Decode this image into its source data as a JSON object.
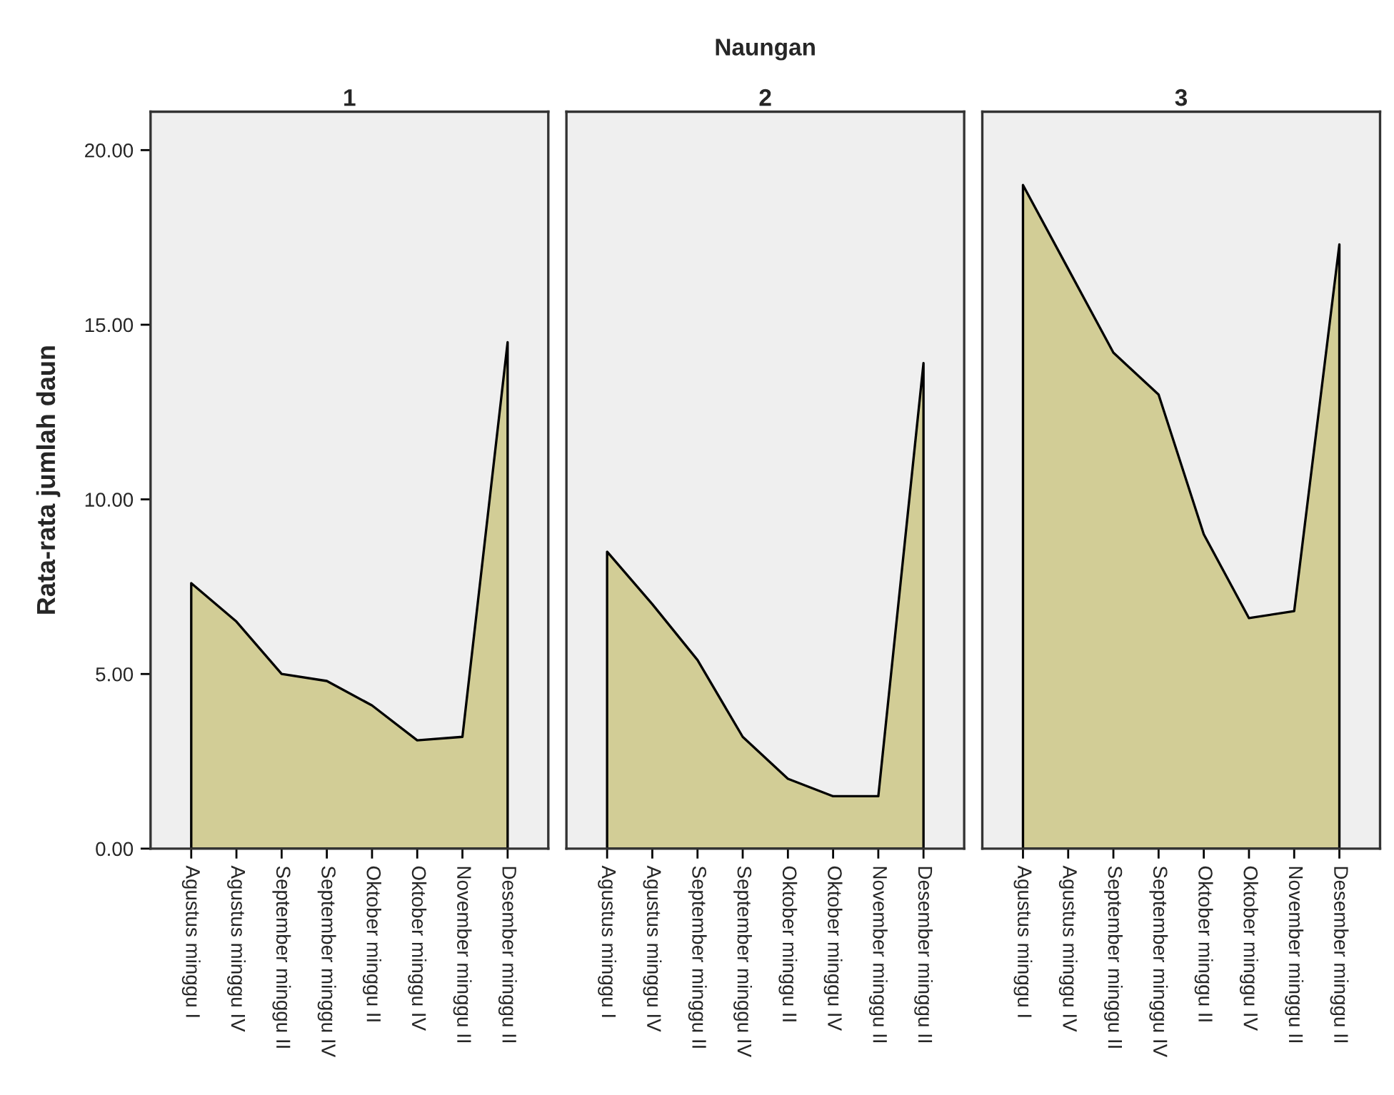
{
  "chart_data": [
    {
      "type": "area",
      "title": "1",
      "annotations": [
        "Naungan"
      ],
      "ylabel": "Rata-rata jumlah daun",
      "categories": [
        "Agustus minggu I",
        "Agustus minggu IV",
        "September minggu II",
        "September minggu IV",
        "Oktober minggu II",
        "Oktober minggu IV",
        "November minggu II",
        "Desember minggu II"
      ],
      "series": [
        {
          "color": "#d2cd96",
          "values": [
            7.6,
            6.5,
            5.0,
            4.8,
            4.1,
            3.1,
            3.2,
            14.5
          ]
        }
      ],
      "ylim": [
        0,
        21.1
      ],
      "yticks": [
        {
          "value": 0,
          "label": "0.00"
        },
        {
          "value": 5,
          "label": "5.00"
        },
        {
          "value": 10,
          "label": "10.00"
        },
        {
          "value": 15,
          "label": "15.00"
        },
        {
          "value": 20,
          "label": "20.00"
        }
      ],
      "grid": false
    },
    {
      "type": "area",
      "title": "2",
      "categories": [
        "Agustus minggu I",
        "Agustus minggu IV",
        "September minggu II",
        "September minggu IV",
        "Oktober minggu II",
        "Oktober minggu IV",
        "November minggu II",
        "Desember minggu II"
      ],
      "series": [
        {
          "color": "#d2cd96",
          "values": [
            8.5,
            7.0,
            5.4,
            3.2,
            2.0,
            1.5,
            1.5,
            13.9
          ]
        }
      ],
      "ylim": [
        0,
        21.1
      ],
      "tick_labels": "x",
      "grid": false
    },
    {
      "type": "area",
      "title": "3",
      "categories": [
        "Agustus minggu I",
        "Agustus minggu IV",
        "September minggu II",
        "September minggu IV",
        "Oktober minggu II",
        "Oktober minggu IV",
        "November minggu II",
        "Desember minggu II"
      ],
      "series": [
        {
          "color": "#d2cd96",
          "values": [
            19.0,
            16.6,
            14.2,
            13.0,
            9.0,
            6.6,
            6.8,
            17.3
          ]
        }
      ],
      "ylim": [
        0,
        21.1
      ],
      "tick_labels": "x",
      "grid": false
    }
  ]
}
